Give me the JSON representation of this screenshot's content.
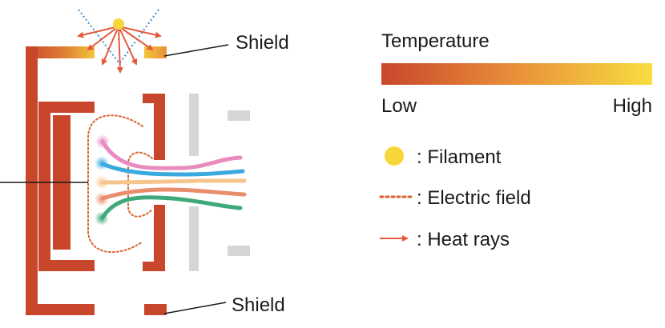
{
  "labels": {
    "shield_top": "Shield",
    "shield_bottom": "Shield"
  },
  "legend": {
    "temperature_title": "Temperature",
    "low": "Low",
    "high": "High",
    "filament": ": Filament",
    "electric_field": ": Electric field",
    "heat_rays": ": Heat rays"
  },
  "colors": {
    "shield": "#c8472c",
    "temp_low": "#c8472c",
    "temp_mid": "#e9903a",
    "temp_high": "#f7dd3f",
    "filament": "#f7d63b",
    "electric_field": "#d9622e",
    "heat_rays": "#e35a3c",
    "filament_ray_dots": "#3a8fd0",
    "grid": "#d6d6d6",
    "ion_pink": "#e98bbf",
    "ion_blue": "#3aa9de",
    "ion_yellow": "#f6c58e",
    "ion_orange": "#ea8d6c",
    "ion_green": "#3ea97a"
  }
}
